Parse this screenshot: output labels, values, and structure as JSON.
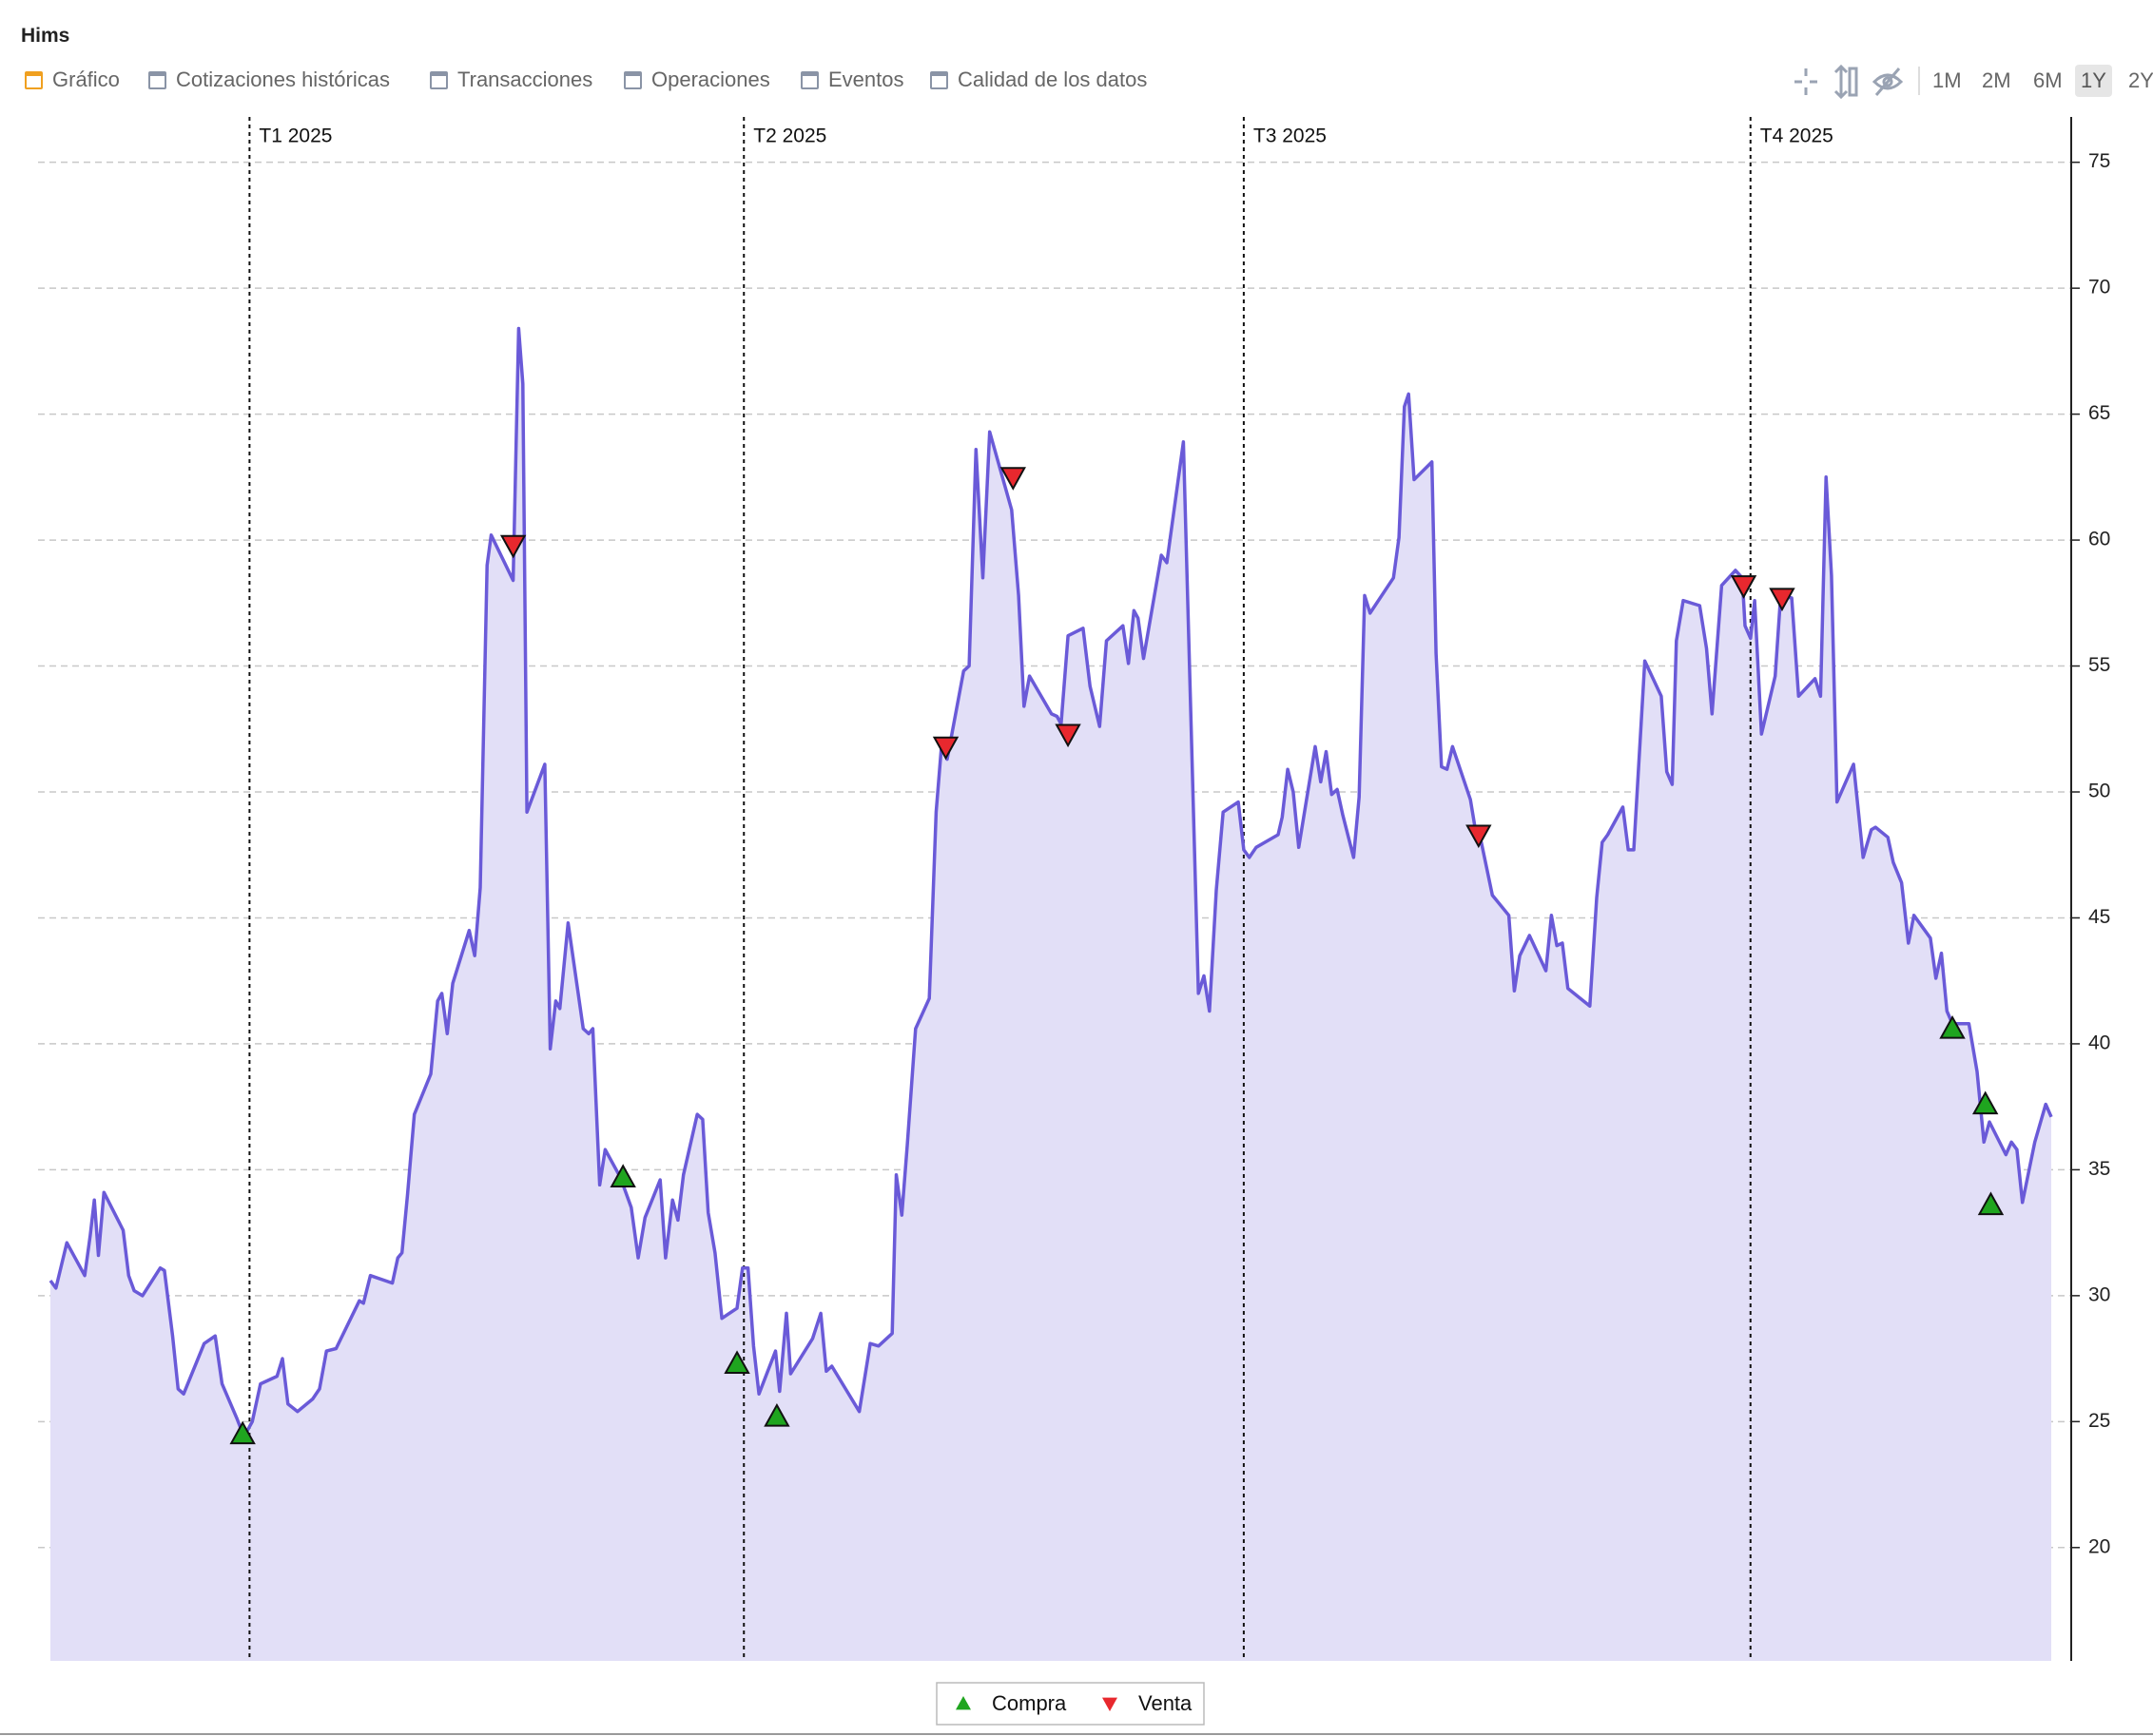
{
  "header": {
    "title": "Hims",
    "tabs": [
      "Gráfico",
      "Cotizaciones históricas",
      "Transacciones",
      "Operaciones",
      "Eventos",
      "Calidad de los datos"
    ],
    "ranges": [
      "1M",
      "2M",
      "6M",
      "1Y",
      "2Y"
    ]
  },
  "chart_data": {
    "type": "line",
    "color": "#6a5ad8",
    "fill_color": "#e2dff7",
    "area": true,
    "yaxis_side": "right",
    "grid": true,
    "xlim": [
      0,
      364.25
    ],
    "xticks": [
      {
        "value": 36.25,
        "label": "T1 2025"
      },
      {
        "value": 126.25,
        "label": "T2 2025"
      },
      {
        "value": 217.25,
        "label": "T3 2025"
      },
      {
        "value": 309.5,
        "label": "T4 2025"
      }
    ],
    "ylim": [
      15.5,
      76.8
    ],
    "yticks": [
      20,
      25,
      30,
      35,
      40,
      45,
      50,
      55,
      60,
      65,
      70,
      75
    ],
    "x": [
      0,
      1,
      3,
      6.25,
      7.25,
      8,
      8.75,
      9.75,
      13.25,
      14.25,
      15.25,
      16.75,
      20,
      20.75,
      22.25,
      23.25,
      24.25,
      28,
      30,
      31.25,
      34,
      35.25,
      36.75,
      38.25,
      41.25,
      42.25,
      43.25,
      45,
      47.75,
      49,
      50.25,
      52,
      56.25,
      57,
      58.25,
      62.25,
      63.25,
      64,
      65,
      66.25,
      69.25,
      70.5,
      71.25,
      72.25,
      73.25,
      76.25,
      77.25,
      78.25,
      79.5,
      80.25,
      84.25,
      85.25,
      86,
      86.75,
      90,
      91,
      92,
      92.75,
      94.25,
      97,
      98,
      98.75,
      100,
      101,
      103.75,
      105.75,
      107,
      108.25,
      111,
      112,
      113.25,
      114.25,
      115.25,
      117.75,
      118.75,
      119.75,
      121,
      122.25,
      125,
      126,
      127,
      128,
      129,
      132,
      132.75,
      134,
      134.75,
      138.75,
      140.25,
      141.25,
      142.25,
      147.25,
      149.25,
      150.75,
      153.25,
      154,
      155,
      156,
      157.5,
      160,
      161.25,
      162.25,
      163.25,
      166.25,
      167.25,
      168.5,
      169.75,
      171,
      175,
      176.25,
      177.25,
      178.25,
      182.25,
      183.25,
      184,
      185.25,
      188,
      189.25,
      191,
      192.25,
      195.25,
      196.25,
      197.25,
      198,
      199,
      202.25,
      203.25,
      206.25,
      209,
      210,
      211,
      212.25,
      213.5,
      216.25,
      217.25,
      218.25,
      219.5,
      223.5,
      224.25,
      225.25,
      226.25,
      227.25,
      230.25,
      231.25,
      232.25,
      233.25,
      234.25,
      235.25,
      237.25,
      238.25,
      239.25,
      240.25,
      244.5,
      245.5,
      246.5,
      247.25,
      248.25,
      251.5,
      252.25,
      253.25,
      254.25,
      255.25,
      258.5,
      259.5,
      260.5,
      262.5,
      265.5,
      266.5,
      267.5,
      269.25,
      272.25,
      273.25,
      274.25,
      275.25,
      276.25,
      280.25,
      281.5,
      282.5,
      283.5,
      286.25,
      287.25,
      288.25,
      290.25,
      293.25,
      294.25,
      295.25,
      296,
      297.25,
      300.25,
      301.5,
      302.5,
      304.25,
      306.75,
      308,
      308.5,
      309.5,
      310.25,
      311.5,
      314,
      315,
      317,
      318.25,
      321.25,
      322.25,
      323.25,
      324.25,
      325.25,
      328.25,
      330,
      331.5,
      332.25,
      334.5,
      335.5,
      337,
      338.25,
      339.25,
      342.25,
      343.25,
      344.25,
      345.25,
      346.25,
      349.25,
      350.75,
      352,
      353,
      356,
      357,
      358,
      359,
      361.25,
      363.25,
      364.25
    ],
    "values": [
      30.6,
      30.3,
      32.1,
      30.8,
      32.4,
      33.8,
      31.6,
      34.1,
      32.6,
      30.8,
      30.2,
      30.0,
      31.1,
      31.0,
      28.4,
      26.3,
      26.1,
      28.1,
      28.4,
      26.5,
      25.1,
      24.4,
      25.0,
      26.5,
      26.8,
      27.5,
      25.7,
      25.4,
      25.9,
      26.3,
      27.8,
      27.9,
      29.8,
      29.7,
      30.8,
      30.5,
      31.5,
      31.7,
      34.0,
      37.2,
      38.8,
      41.7,
      42.0,
      40.4,
      42.4,
      44.5,
      43.5,
      46.2,
      59.0,
      60.2,
      58.4,
      68.4,
      66.2,
      49.2,
      51.1,
      39.8,
      41.7,
      41.4,
      44.8,
      40.6,
      40.4,
      40.6,
      34.4,
      35.8,
      34.7,
      33.5,
      31.5,
      33.1,
      34.6,
      31.5,
      33.8,
      33.0,
      34.8,
      37.2,
      37.0,
      33.3,
      31.7,
      29.1,
      29.5,
      31.1,
      31.1,
      28.0,
      26.1,
      27.8,
      26.2,
      29.3,
      26.9,
      28.3,
      29.3,
      27.0,
      27.2,
      25.4,
      28.1,
      28.0,
      28.5,
      34.8,
      33.2,
      36.0,
      40.6,
      41.8,
      49.2,
      51.9,
      51.3,
      54.8,
      55.0,
      63.6,
      58.5,
      64.3,
      61.2,
      57.8,
      53.4,
      54.6,
      53.1,
      53.0,
      52.7,
      56.2,
      56.5,
      54.2,
      52.6,
      56.0,
      56.6,
      55.1,
      57.2,
      56.9,
      55.3,
      59.4,
      59.1,
      63.9,
      42.0,
      42.7,
      41.3,
      46.1,
      49.2,
      49.6,
      47.7,
      47.4,
      47.8,
      48.3,
      49.0,
      50.9,
      50.0,
      47.8,
      51.8,
      50.4,
      51.6,
      49.9,
      50.1,
      49.1,
      47.4,
      49.8,
      57.8,
      57.1,
      58.5,
      60.1,
      65.3,
      65.8,
      62.4,
      63.1,
      55.5,
      51.0,
      50.9,
      51.8,
      49.7,
      48.4,
      48.0,
      45.9,
      45.1,
      42.1,
      43.5,
      44.3,
      42.9,
      45.1,
      43.9,
      44.0,
      42.2,
      41.5,
      45.8,
      48.0,
      48.3,
      49.4,
      47.7,
      47.7,
      55.2,
      53.8,
      50.8,
      50.3,
      56.0,
      57.6,
      57.4,
      55.7,
      53.1,
      58.2,
      58.8,
      58.5,
      56.6,
      56.1,
      57.6,
      52.3,
      54.6,
      57.8,
      57.7,
      53.8,
      54.5,
      53.8,
      62.5,
      58.6,
      49.6,
      51.1,
      47.4,
      48.5,
      48.6,
      48.2,
      47.2,
      46.4,
      44.0,
      45.1,
      44.2,
      42.6,
      43.6,
      41.3,
      40.8,
      40.8,
      38.9,
      36.1,
      36.9,
      35.6,
      36.1,
      35.8,
      33.7,
      36.1,
      37.6,
      37.1
    ],
    "series": [
      {
        "name": "Compra",
        "marker": "triangle-up",
        "color": "#1fa51f",
        "x": [
          35,
          104.25,
          125,
          132.25,
          346.25,
          352.25,
          353.25
        ],
        "values": [
          24.5,
          34.7,
          27.3,
          25.2,
          40.6,
          37.6,
          33.6
        ]
      },
      {
        "name": "Venta",
        "marker": "triangle-down",
        "color": "#e8282e",
        "x": [
          84.25,
          163,
          175.25,
          185.25,
          260,
          308.25,
          315.25
        ],
        "values": [
          59.8,
          51.8,
          62.5,
          52.3,
          48.3,
          58.2,
          57.7
        ]
      }
    ]
  }
}
